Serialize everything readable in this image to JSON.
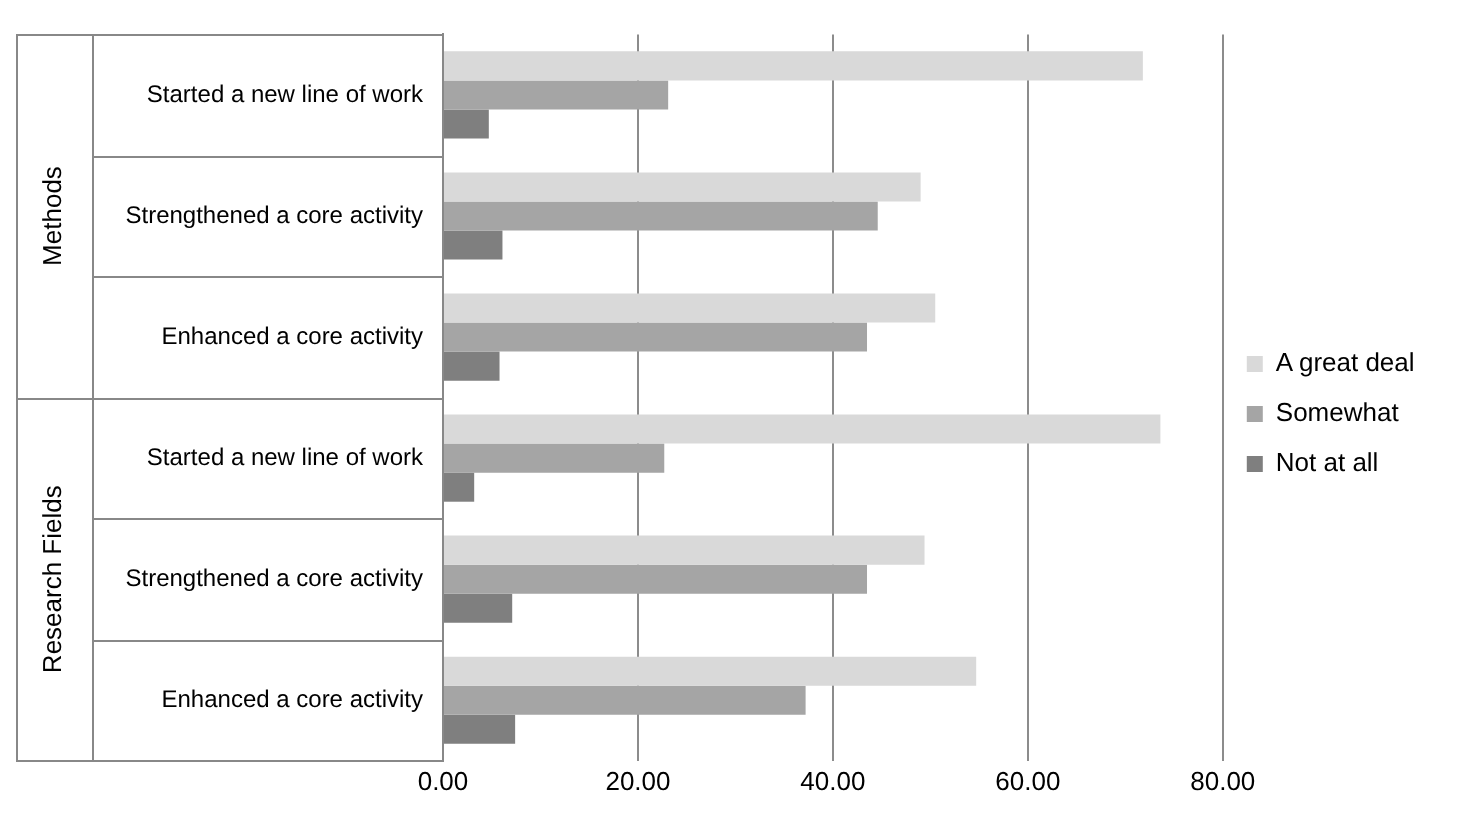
{
  "chart_data": {
    "type": "bar",
    "orientation": "horizontal",
    "categories": [
      "Started a new line of work",
      "Strengthened a core activity",
      "Enhanced a core activity",
      "Started a new line of work",
      "Strengthened a core activity",
      "Enhanced a core activity"
    ],
    "series": [
      {
        "name": "A great deal",
        "color": "#d9d9d9",
        "values": [
          71.8,
          49.0,
          50.5,
          73.6,
          49.4,
          54.7
        ]
      },
      {
        "name": "Somewhat",
        "color": "#a5a5a5",
        "values": [
          23.1,
          44.6,
          43.5,
          22.7,
          43.5,
          37.2
        ]
      },
      {
        "name": "Not at all",
        "color": "#7f7f7f",
        "values": [
          4.7,
          6.1,
          5.8,
          3.2,
          7.1,
          7.4
        ]
      }
    ],
    "xlim": [
      0,
      80
    ],
    "xticks": [
      {
        "value": 0,
        "label": "0.00"
      },
      {
        "value": 20,
        "label": "20.00"
      },
      {
        "value": 40,
        "label": "40.00"
      },
      {
        "value": 60,
        "label": "60.00"
      },
      {
        "value": 80,
        "label": "80.00"
      }
    ],
    "annotations": [
      "Methods",
      "Research Fields"
    ],
    "grid": "x",
    "legend": "right"
  }
}
